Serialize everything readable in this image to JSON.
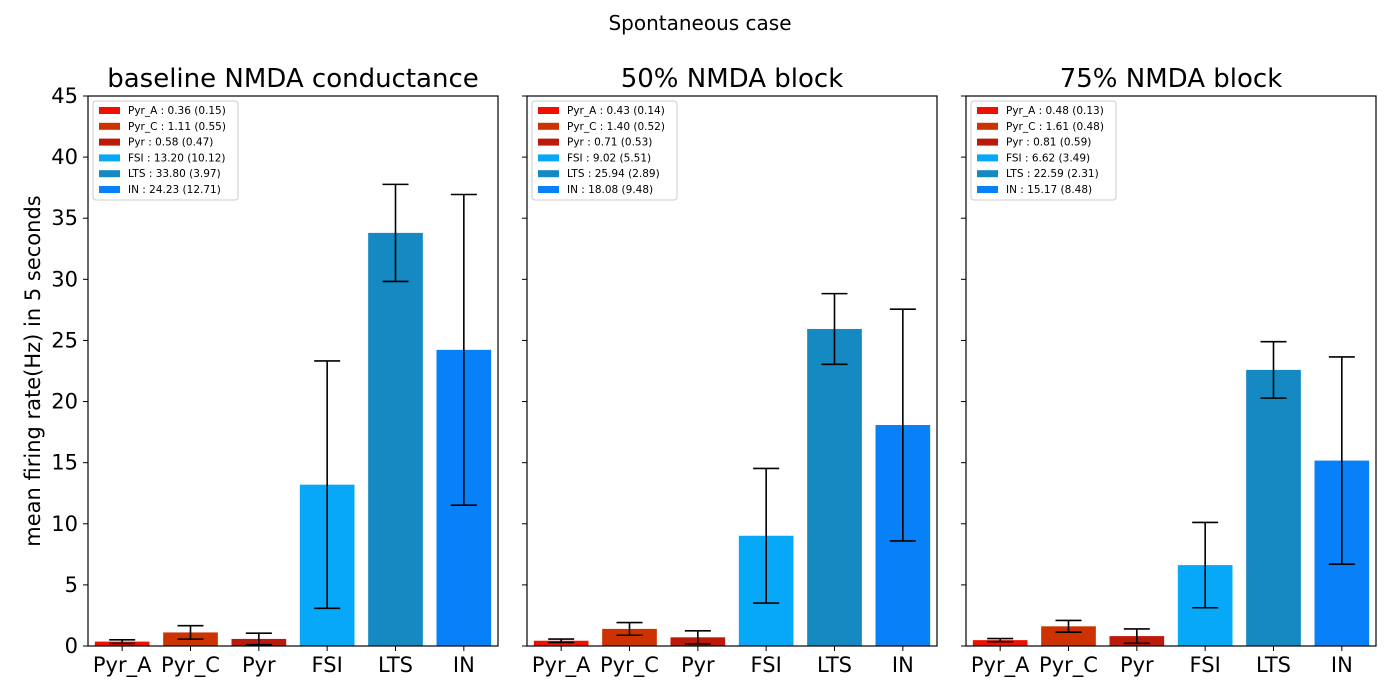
{
  "figure": {
    "suptitle": "Spontaneous case",
    "ylabel": "mean firing rate(Hz) in 5 seconds"
  },
  "chart_data": [
    {
      "type": "bar",
      "title": "baseline NMDA conductance",
      "categories": [
        "Pyr_A",
        "Pyr_C",
        "Pyr",
        "FSI",
        "LTS",
        "IN"
      ],
      "values": [
        0.36,
        1.11,
        0.58,
        13.2,
        33.8,
        24.23
      ],
      "errors": [
        0.15,
        0.55,
        0.47,
        10.12,
        3.97,
        12.71
      ],
      "colors": [
        "#ee1100",
        "#cc3300",
        "#bb1a0b",
        "#08a8f8",
        "#1489c2",
        "#0880f8"
      ],
      "legend": [
        "Pyr_A : 0.36 (0.15)",
        "Pyr_C : 1.11 (0.55)",
        "Pyr : 0.58 (0.47)",
        "FSI : 13.20 (10.12)",
        "LTS : 33.80 (3.97)",
        "IN : 24.23 (12.71)"
      ],
      "legend_position": "upper-left",
      "ylim": [
        0,
        45
      ],
      "yticks": [
        0,
        5,
        10,
        15,
        20,
        25,
        30,
        35,
        40,
        45
      ],
      "ytick_labels_shown": true
    },
    {
      "type": "bar",
      "title": "50% NMDA block",
      "categories": [
        "Pyr_A",
        "Pyr_C",
        "Pyr",
        "FSI",
        "LTS",
        "IN"
      ],
      "values": [
        0.43,
        1.4,
        0.71,
        9.02,
        25.94,
        18.08
      ],
      "errors": [
        0.14,
        0.52,
        0.53,
        5.51,
        2.89,
        9.48
      ],
      "colors": [
        "#ee1100",
        "#cc3300",
        "#bb1a0b",
        "#08a8f8",
        "#1489c2",
        "#0880f8"
      ],
      "legend": [
        "Pyr_A : 0.43 (0.14)",
        "Pyr_C : 1.40 (0.52)",
        "Pyr : 0.71 (0.53)",
        "FSI : 9.02 (5.51)",
        "LTS : 25.94 (2.89)",
        "IN : 18.08 (9.48)"
      ],
      "legend_position": "upper-left",
      "ylim": [
        0,
        45
      ],
      "yticks": [
        0,
        5,
        10,
        15,
        20,
        25,
        30,
        35,
        40,
        45
      ],
      "ytick_labels_shown": false
    },
    {
      "type": "bar",
      "title": "75% NMDA block",
      "categories": [
        "Pyr_A",
        "Pyr_C",
        "Pyr",
        "FSI",
        "LTS",
        "IN"
      ],
      "values": [
        0.48,
        1.61,
        0.81,
        6.62,
        22.59,
        15.17
      ],
      "errors": [
        0.13,
        0.48,
        0.59,
        3.49,
        2.31,
        8.48
      ],
      "colors": [
        "#ee1100",
        "#cc3300",
        "#bb1a0b",
        "#08a8f8",
        "#1489c2",
        "#0880f8"
      ],
      "legend": [
        "Pyr_A : 0.48 (0.13)",
        "Pyr_C : 1.61 (0.48)",
        "Pyr : 0.81 (0.59)",
        "FSI : 6.62 (3.49)",
        "LTS : 22.59 (2.31)",
        "IN : 15.17 (8.48)"
      ],
      "legend_position": "upper-left",
      "ylim": [
        0,
        45
      ],
      "yticks": [
        0,
        5,
        10,
        15,
        20,
        25,
        30,
        35,
        40,
        45
      ],
      "ytick_labels_shown": false
    }
  ]
}
